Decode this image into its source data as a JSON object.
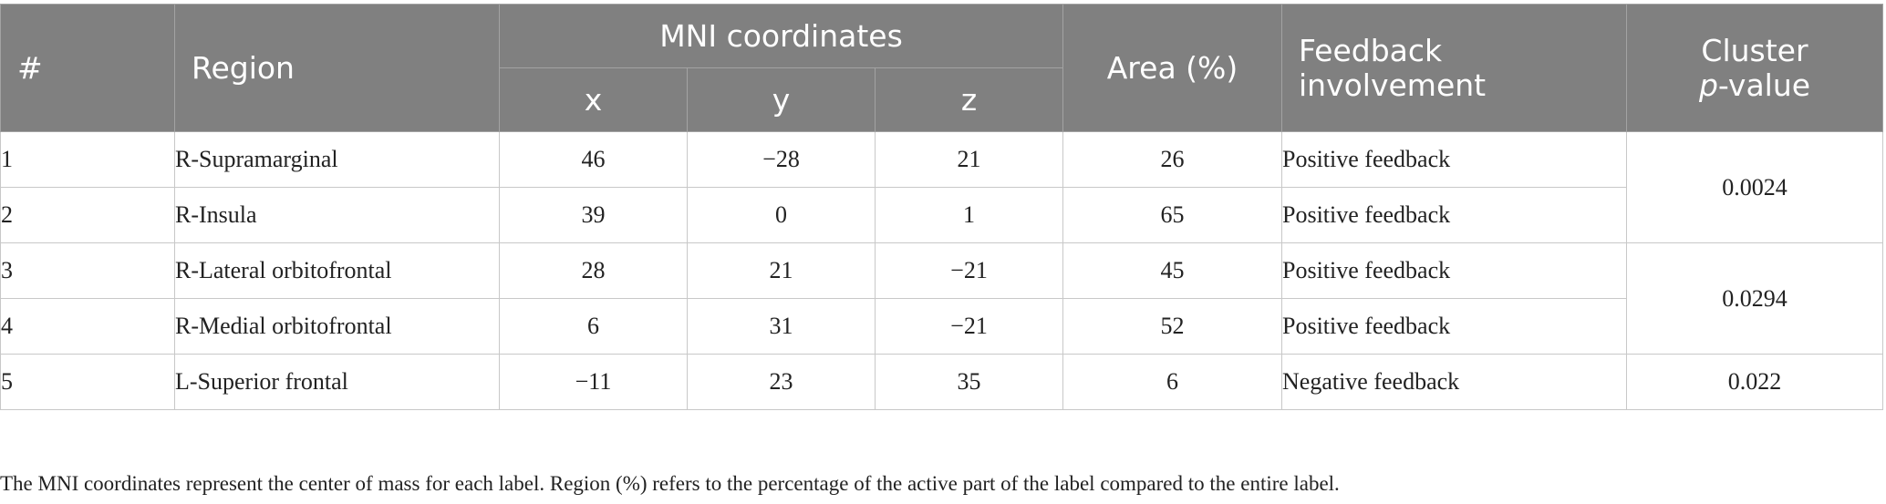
{
  "headers": {
    "num": "#",
    "region": "Region",
    "mni": "MNI coordinates",
    "x": "x",
    "y": "y",
    "z": "z",
    "area": "Area (%)",
    "feedback": "Feedback involvement",
    "cluster_line1": "Cluster",
    "cluster_p": "p",
    "cluster_rest": "-value"
  },
  "rows": [
    {
      "num": "1",
      "region": "R-Supramarginal",
      "x": "46",
      "y": "−28",
      "z": "21",
      "area": "26",
      "feedback": "Positive feedback"
    },
    {
      "num": "2",
      "region": "R-Insula",
      "x": "39",
      "y": "0",
      "z": "1",
      "area": "65",
      "feedback": "Positive feedback"
    },
    {
      "num": "3",
      "region": "R-Lateral orbitofrontal",
      "x": "28",
      "y": "21",
      "z": "−21",
      "area": "45",
      "feedback": "Positive feedback"
    },
    {
      "num": "4",
      "region": "R-Medial orbitofrontal",
      "x": "6",
      "y": "31",
      "z": "−21",
      "area": "52",
      "feedback": "Positive feedback"
    },
    {
      "num": "5",
      "region": "L-Superior frontal",
      "x": "−11",
      "y": "23",
      "z": "35",
      "area": "6",
      "feedback": "Negative feedback"
    }
  ],
  "clusters": [
    "0.0024",
    "0.0294",
    "0.022"
  ],
  "footnote": "The MNI coordinates represent the center of mass for each label. Region (%) refers to the percentage of the active part of the label compared to the entire label."
}
